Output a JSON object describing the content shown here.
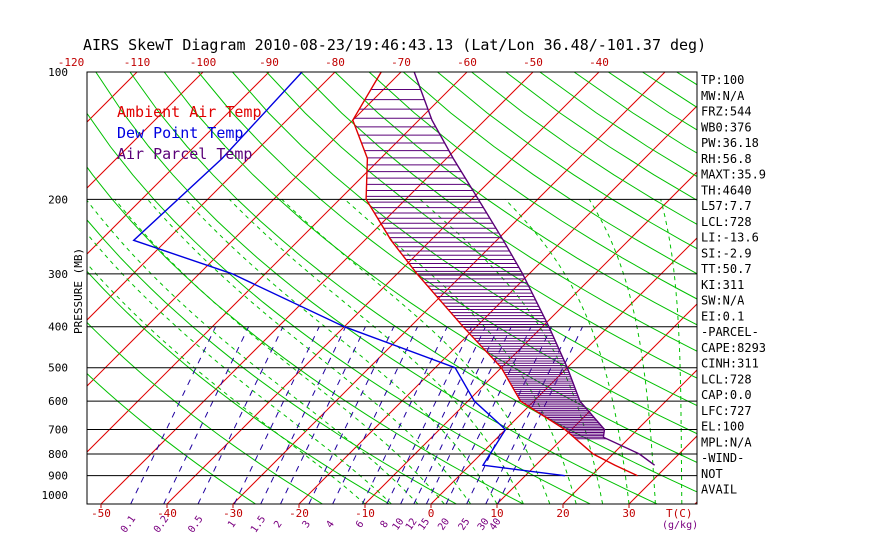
{
  "chart_data": {
    "type": "line",
    "title": "AIRS SkewT Diagram 2010-08-23/19:46:43.13 (Lat/Lon 36.48/-101.37 deg)",
    "ylabel": "PRESSURE (MB)",
    "xlabel": "T(C)",
    "mixing_ratio_unit": "(g/kg)",
    "y_scale": "log",
    "ylim": [
      1000,
      100
    ],
    "pressure_ticks": [
      100,
      200,
      300,
      400,
      500,
      600,
      700,
      800,
      900,
      1000
    ],
    "bottom_temperature_ticks": [
      -50,
      -40,
      -30,
      -20,
      -10,
      0,
      10,
      20,
      30
    ],
    "top_temperature_ticks": [
      -120,
      -110,
      -100,
      -90,
      -80,
      -70,
      -60,
      -50,
      -40
    ],
    "mixing_ratio_labels": [
      "0.1",
      "0.2",
      "0.5",
      "1",
      "1.5",
      "2",
      "3",
      "4",
      "6",
      "8",
      "10",
      "12",
      "15",
      "20",
      "25",
      "30",
      "40"
    ],
    "colors": {
      "ambient": "#e00000",
      "dewpoint": "#0000e0",
      "parcel": "#5a0078",
      "isotherm": "#e00000",
      "dry_adiabat": "#00c000",
      "moist_adiabat": "#00c000",
      "mixing_ratio": "#2000a0"
    },
    "legend": {
      "placement": "top-left",
      "items": [
        {
          "label": "Ambient Air Temp",
          "color": "#e00000"
        },
        {
          "label": "Dew Point Temp",
          "color": "#0000e0"
        },
        {
          "label": "Air Parcel Temp",
          "color": "#5a0078"
        }
      ]
    },
    "series": [
      {
        "name": "Ambient Air Temp",
        "points": [
          {
            "p": 100,
            "t": -73
          },
          {
            "p": 130,
            "t": -70
          },
          {
            "p": 160,
            "t": -62
          },
          {
            "p": 200,
            "t": -56
          },
          {
            "p": 250,
            "t": -46
          },
          {
            "p": 300,
            "t": -37
          },
          {
            "p": 400,
            "t": -22
          },
          {
            "p": 500,
            "t": -10
          },
          {
            "p": 600,
            "t": -2
          },
          {
            "p": 700,
            "t": 9
          },
          {
            "p": 800,
            "t": 17
          },
          {
            "p": 850,
            "t": 22
          },
          {
            "p": 900,
            "t": 27
          }
        ]
      },
      {
        "name": "Dew Point Temp",
        "points": [
          {
            "p": 100,
            "t": -85
          },
          {
            "p": 160,
            "t": -84
          },
          {
            "p": 250,
            "t": -85
          },
          {
            "p": 300,
            "t": -65
          },
          {
            "p": 400,
            "t": -40
          },
          {
            "p": 500,
            "t": -17
          },
          {
            "p": 600,
            "t": -9
          },
          {
            "p": 700,
            "t": 0
          },
          {
            "p": 850,
            "t": 2
          },
          {
            "p": 900,
            "t": 16
          }
        ]
      },
      {
        "name": "Air Parcel Temp",
        "points": [
          {
            "p": 100,
            "t": -68
          },
          {
            "p": 130,
            "t": -58
          },
          {
            "p": 160,
            "t": -49
          },
          {
            "p": 200,
            "t": -39
          },
          {
            "p": 250,
            "t": -29
          },
          {
            "p": 300,
            "t": -21
          },
          {
            "p": 400,
            "t": -9
          },
          {
            "p": 500,
            "t": 0
          },
          {
            "p": 600,
            "t": 7
          },
          {
            "p": 700,
            "t": 15
          },
          {
            "p": 730,
            "t": 16
          },
          {
            "p": 800,
            "t": 24
          },
          {
            "p": 850,
            "t": 28
          }
        ]
      }
    ],
    "indices": [
      "TP:100",
      "MW:N/A",
      "FRZ:544",
      "WB0:376",
      "PW:36.18",
      "RH:56.8",
      "MAXT:35.9",
      "TH:4640",
      "L57:7.7",
      "LCL:728",
      "LI:-13.6",
      "SI:-2.9",
      "TT:50.7",
      "KI:311",
      "SW:N/A",
      "EI:0.1",
      "-PARCEL-",
      "CAPE:8293",
      "CINH:311",
      "LCL:728",
      "CAP:0.0",
      "LFC:727",
      "EL:100",
      "MPL:N/A",
      "-WIND-",
      "NOT",
      "AVAIL"
    ]
  }
}
